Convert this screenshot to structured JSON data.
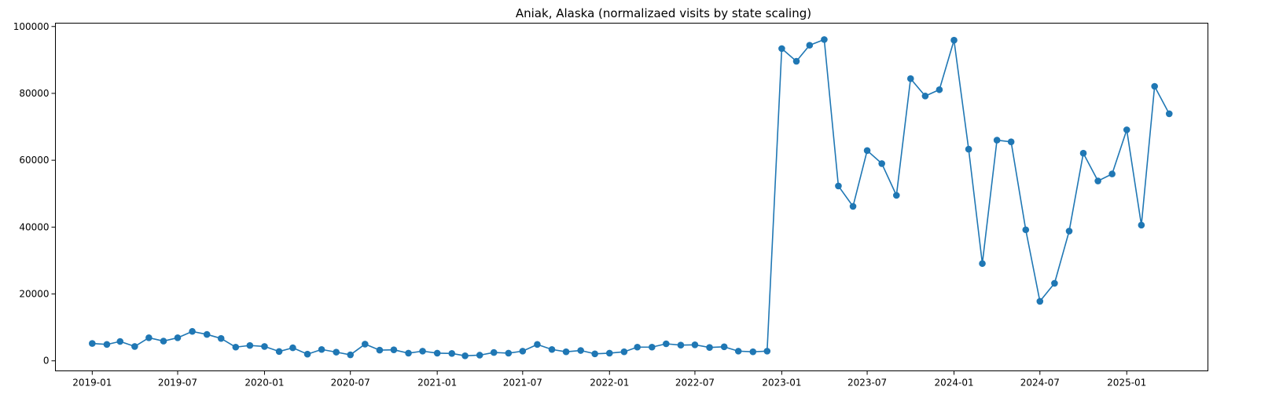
{
  "chart_data": {
    "type": "line",
    "title": "Aniak, Alaska (normalizaed visits by state scaling)",
    "xlabel": "",
    "ylabel": "",
    "ylim": [
      -3000,
      101000
    ],
    "xlim": [
      "2018-10-15",
      "2025-06-22"
    ],
    "grid": false,
    "color": "#1f77b4",
    "marker": "circle",
    "x_ticks": [
      "2019-01",
      "2019-07",
      "2020-01",
      "2020-07",
      "2021-01",
      "2021-07",
      "2022-01",
      "2022-07",
      "2023-01",
      "2023-07",
      "2024-01",
      "2024-07",
      "2025-01"
    ],
    "y_ticks": [
      0,
      20000,
      40000,
      60000,
      80000,
      100000
    ],
    "series": [
      {
        "x": [
          "2019-01-01",
          "2019-02-01",
          "2019-03-01",
          "2019-04-01",
          "2019-05-01",
          "2019-06-01",
          "2019-07-01",
          "2019-08-01",
          "2019-09-01",
          "2019-10-01",
          "2019-11-01",
          "2019-12-01",
          "2020-01-01",
          "2020-02-01",
          "2020-03-01",
          "2020-04-01",
          "2020-05-01",
          "2020-06-01",
          "2020-07-01",
          "2020-08-01",
          "2020-09-01",
          "2020-10-01",
          "2020-11-01",
          "2020-12-01",
          "2021-01-01",
          "2021-02-01",
          "2021-03-01",
          "2021-04-01",
          "2021-05-01",
          "2021-06-01",
          "2021-07-01",
          "2021-08-01",
          "2021-09-01",
          "2021-10-01",
          "2021-11-01",
          "2021-12-01",
          "2022-01-01",
          "2022-02-01",
          "2022-03-01",
          "2022-04-01",
          "2022-05-01",
          "2022-06-01",
          "2022-07-01",
          "2022-08-01",
          "2022-09-01",
          "2022-10-01",
          "2022-11-01",
          "2022-12-01",
          "2023-01-01",
          "2023-02-01",
          "2023-03-01",
          "2023-04-01",
          "2023-05-01",
          "2023-06-01",
          "2023-07-01",
          "2023-08-01",
          "2023-09-01",
          "2023-10-01",
          "2023-11-01",
          "2023-12-01",
          "2024-01-01",
          "2024-02-01",
          "2024-03-01",
          "2024-04-01",
          "2024-05-01",
          "2024-06-01",
          "2024-07-01",
          "2024-08-01",
          "2024-09-01",
          "2024-10-01",
          "2024-11-01",
          "2024-12-01",
          "2025-01-01",
          "2025-02-01",
          "2025-03-01",
          "2025-04-01"
        ],
        "values": [
          5200,
          4900,
          5800,
          4300,
          6900,
          5900,
          6900,
          8800,
          7900,
          6700,
          4100,
          4600,
          4300,
          2800,
          3900,
          2000,
          3400,
          2600,
          1800,
          5000,
          3200,
          3300,
          2300,
          2900,
          2300,
          2200,
          1500,
          1700,
          2500,
          2300,
          2900,
          4900,
          3400,
          2700,
          3100,
          2100,
          2300,
          2700,
          4100,
          4100,
          5100,
          4700,
          4800,
          4000,
          4200,
          2900,
          2700,
          2900,
          93400,
          89600,
          94400,
          96100,
          52300,
          46200,
          62900,
          59000,
          49500,
          84400,
          79200,
          81100,
          95900,
          63300,
          29100,
          66000,
          65500,
          39200,
          17800,
          23200,
          38800,
          62100,
          53800,
          55900,
          69100,
          40600,
          82100,
          73900
        ]
      }
    ]
  }
}
